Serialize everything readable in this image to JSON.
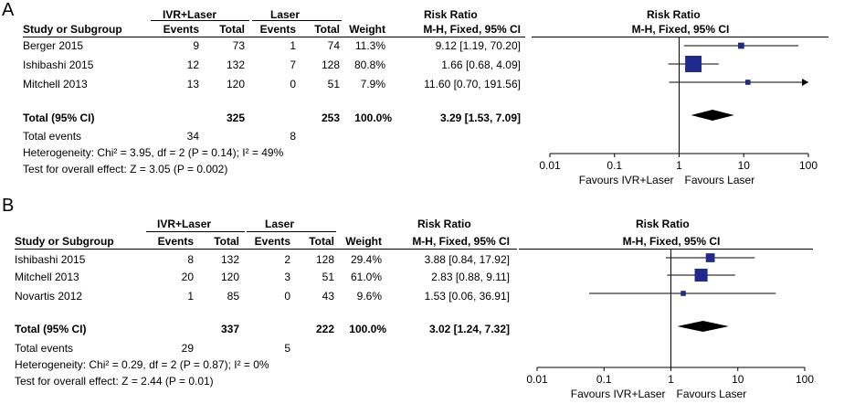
{
  "panels": [
    {
      "letter": "A",
      "headers": {
        "study": "Study or Subgroup",
        "group1": "IVR+Laser",
        "group2": "Laser",
        "events": "Events",
        "total": "Total",
        "weight": "Weight",
        "rr_title": "Risk Ratio",
        "rr_method": "M-H, Fixed, 95% CI"
      },
      "studies": [
        {
          "name": "Berger 2015",
          "e1": "9",
          "t1": "73",
          "e2": "1",
          "t2": "74",
          "weight": "11.3%",
          "ci": "9.12 [1.19, 70.20]"
        },
        {
          "name": "Ishibashi 2015",
          "e1": "12",
          "t1": "132",
          "e2": "7",
          "t2": "128",
          "weight": "80.8%",
          "ci": "1.66 [0.68, 4.09]"
        },
        {
          "name": "Mitchell 2013",
          "e1": "13",
          "t1": "120",
          "e2": "0",
          "t2": "51",
          "weight": "7.9%",
          "ci": "11.60 [0.70, 191.56]"
        }
      ],
      "total": {
        "label": "Total (95% CI)",
        "t1": "325",
        "t2": "253",
        "weight": "100.0%",
        "ci": "3.29 [1.53, 7.09]"
      },
      "events_row": {
        "label": "Total events",
        "e1": "34",
        "e2": "8"
      },
      "heterogeneity": "Heterogeneity: Chi² = 3.95, df = 2 (P = 0.14); I² = 49%",
      "overall": "Test for overall effect: Z = 3.05 (P = 0.002)",
      "ticks": [
        "0.01",
        "0.1",
        "1",
        "10",
        "100"
      ],
      "favours_left": "Favours IVR+Laser",
      "favours_right": "Favours Laser"
    },
    {
      "letter": "B",
      "headers": {
        "study": "Study or Subgroup",
        "group1": "IVR+Laser",
        "group2": "Laser",
        "events": "Events",
        "total": "Total",
        "weight": "Weight",
        "rr_title": "Risk Ratio",
        "rr_method": "M-H, Fixed, 95% CI"
      },
      "studies": [
        {
          "name": "Ishibashi 2015",
          "e1": "8",
          "t1": "132",
          "e2": "2",
          "t2": "128",
          "weight": "29.4%",
          "ci": "3.88 [0.84, 17.92]"
        },
        {
          "name": "Mitchell 2013",
          "e1": "20",
          "t1": "120",
          "e2": "3",
          "t2": "51",
          "weight": "61.0%",
          "ci": "2.83 [0.88, 9.11]"
        },
        {
          "name": "Novartis 2012",
          "e1": "1",
          "t1": "85",
          "e2": "0",
          "t2": "43",
          "weight": "9.6%",
          "ci": "1.53 [0.06, 36.91]"
        }
      ],
      "total": {
        "label": "Total (95% CI)",
        "t1": "337",
        "t2": "222",
        "weight": "100.0%",
        "ci": "3.02 [1.24, 7.32]"
      },
      "events_row": {
        "label": "Total events",
        "e1": "29",
        "e2": "5"
      },
      "heterogeneity": "Heterogeneity: Chi² = 0.29, df = 2 (P = 0.87); I² = 0%",
      "overall": "Test for overall effect: Z = 2.44 (P = 0.01)",
      "ticks": [
        "0.01",
        "0.1",
        "1",
        "10",
        "100"
      ],
      "favours_left": "Favours IVR+Laser",
      "favours_right": "Favours Laser"
    }
  ],
  "chart_data": [
    {
      "type": "forest",
      "scale": "log",
      "xlim": [
        0.01,
        100
      ],
      "xticks": [
        0.01,
        0.1,
        1,
        10,
        100
      ],
      "marker_color": "#1f2a8a",
      "studies": [
        {
          "name": "Berger 2015",
          "rr": 9.12,
          "lo": 1.19,
          "hi": 70.2,
          "weight": 11.3
        },
        {
          "name": "Ishibashi 2015",
          "rr": 1.66,
          "lo": 0.68,
          "hi": 4.09,
          "weight": 80.8
        },
        {
          "name": "Mitchell 2013",
          "rr": 11.6,
          "lo": 0.7,
          "hi": 191.56,
          "weight": 7.9
        }
      ],
      "pooled": {
        "rr": 3.29,
        "lo": 1.53,
        "hi": 7.09
      }
    },
    {
      "type": "forest",
      "scale": "log",
      "xlim": [
        0.01,
        100
      ],
      "xticks": [
        0.01,
        0.1,
        1,
        10,
        100
      ],
      "marker_color": "#1f2a8a",
      "studies": [
        {
          "name": "Ishibashi 2015",
          "rr": 3.88,
          "lo": 0.84,
          "hi": 17.92,
          "weight": 29.4
        },
        {
          "name": "Mitchell 2013",
          "rr": 2.83,
          "lo": 0.88,
          "hi": 9.11,
          "weight": 61.0
        },
        {
          "name": "Novartis 2012",
          "rr": 1.53,
          "lo": 0.06,
          "hi": 36.91,
          "weight": 9.6
        }
      ],
      "pooled": {
        "rr": 3.02,
        "lo": 1.24,
        "hi": 7.32
      }
    }
  ]
}
